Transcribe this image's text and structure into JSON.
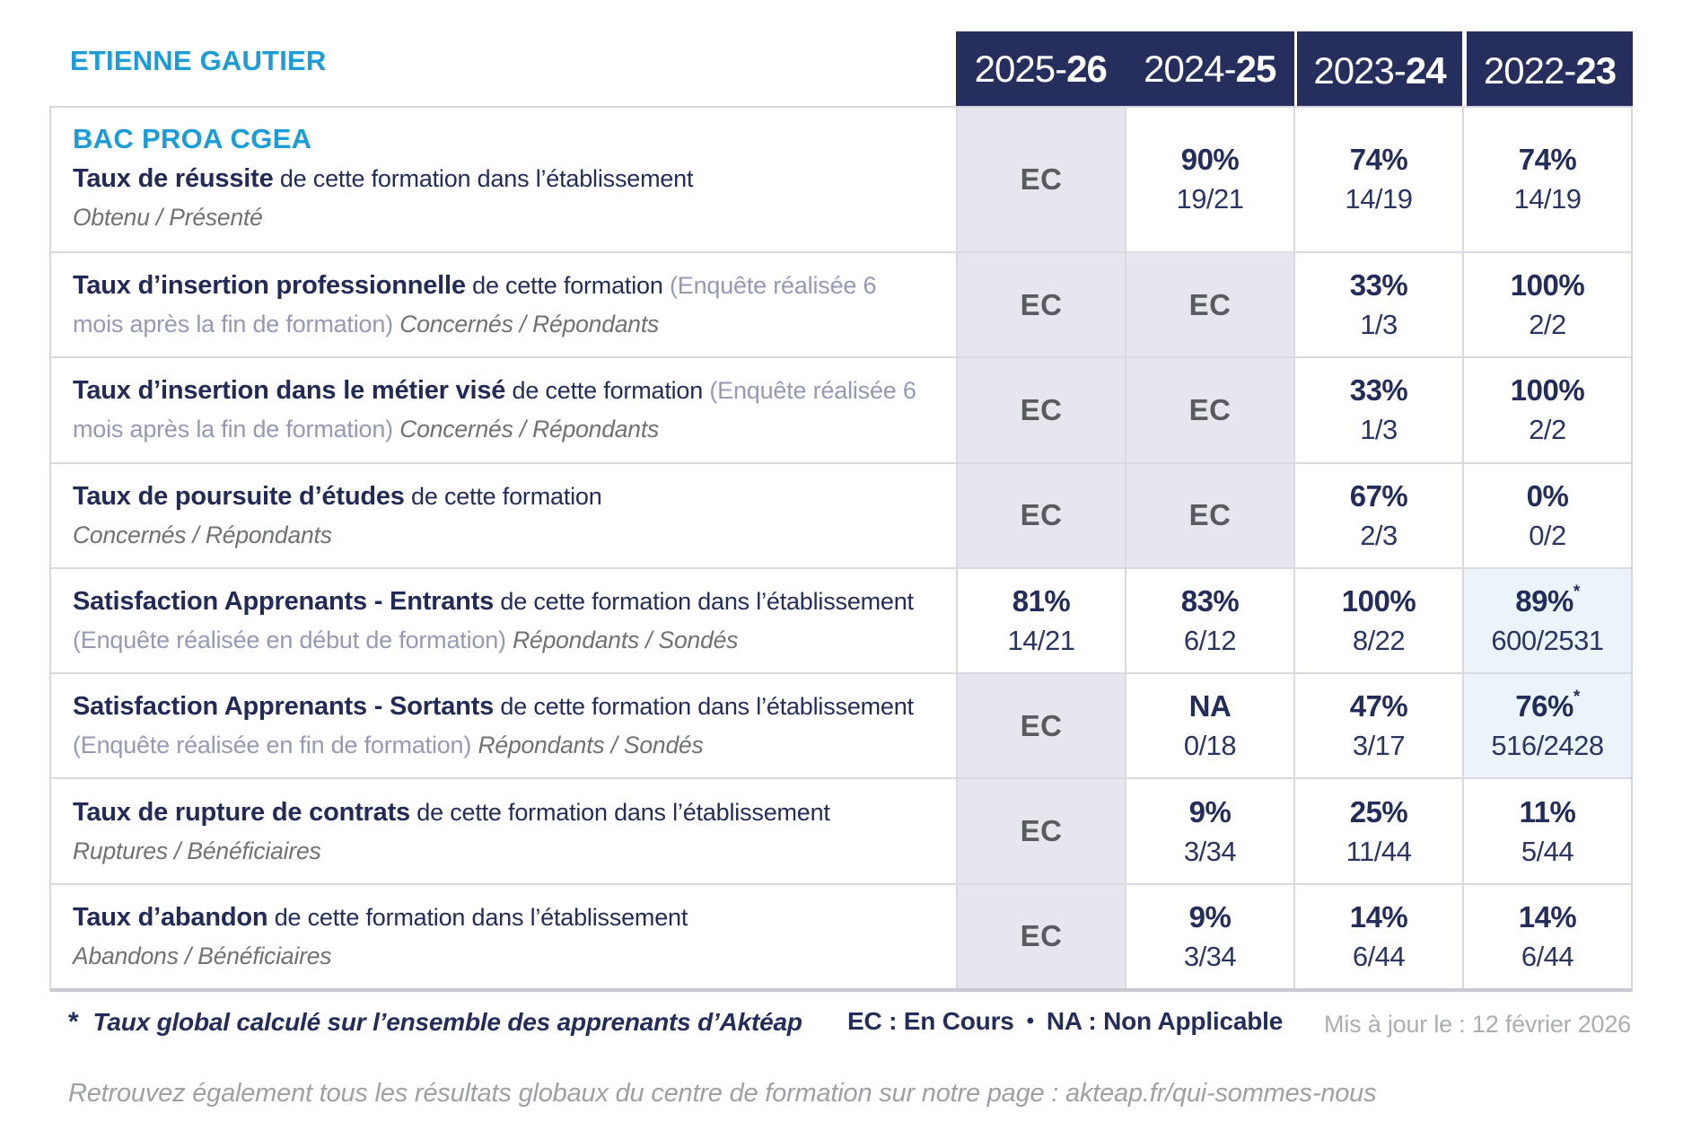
{
  "colors": {
    "accent_blue": "#1B9CD9",
    "navy": "#252E5C",
    "header_bg": "#252E5C",
    "grey_cell_bg": "#E7E6EE",
    "blue_cell_bg": "#EBF4FA",
    "ec_text_grey": "#5A5B5E",
    "border_grey": "#DAD9E2"
  },
  "header": {
    "student_name": "ETIENNE GAUTIER",
    "years": [
      {
        "prefix": "2025-",
        "suffix": "26"
      },
      {
        "prefix": "2024-",
        "suffix": "25"
      },
      {
        "prefix": "2023-",
        "suffix": "24"
      },
      {
        "prefix": "2022-",
        "suffix": "23"
      }
    ]
  },
  "program": {
    "title": "BAC PROA CGEA"
  },
  "rows": [
    {
      "title": "Taux de réussite",
      "desc": "de cette formation dans l’établissement",
      "note": "",
      "subtitle": "Obtenu / Présenté",
      "subtitle_block": true,
      "values": [
        {
          "type": "ec",
          "main": "EC",
          "star": "",
          "detail": ""
        },
        {
          "type": "value",
          "main": "90%",
          "star": "",
          "detail": "19/21"
        },
        {
          "type": "value",
          "main": "74%",
          "star": "",
          "detail": "14/19"
        },
        {
          "type": "value",
          "main": "74%",
          "star": "",
          "detail": "14/19"
        }
      ]
    },
    {
      "title": "Taux d’insertion professionnelle",
      "desc": "de cette formation",
      "note": "(Enquête réalisée 6 mois après la fin de formation)",
      "subtitle": "Concernés / Répondants",
      "subtitle_block": false,
      "values": [
        {
          "type": "ec",
          "main": "EC",
          "star": "",
          "detail": ""
        },
        {
          "type": "ec",
          "main": "EC",
          "star": "",
          "detail": ""
        },
        {
          "type": "value",
          "main": "33%",
          "star": "",
          "detail": "1/3"
        },
        {
          "type": "value",
          "main": "100%",
          "star": "",
          "detail": "2/2"
        }
      ]
    },
    {
      "title": "Taux d’insertion dans le métier visé",
      "desc": "de cette formation",
      "note": "(Enquête réalisée 6 mois après la fin de formation)",
      "subtitle": "Concernés / Répondants",
      "subtitle_block": false,
      "values": [
        {
          "type": "ec",
          "main": "EC",
          "star": "",
          "detail": ""
        },
        {
          "type": "ec",
          "main": "EC",
          "star": "",
          "detail": ""
        },
        {
          "type": "value",
          "main": "33%",
          "star": "",
          "detail": "1/3"
        },
        {
          "type": "value",
          "main": "100%",
          "star": "",
          "detail": "2/2"
        }
      ]
    },
    {
      "title": "Taux de poursuite d’études",
      "desc": "de cette formation",
      "note": "",
      "subtitle": "Concernés / Répondants",
      "subtitle_block": true,
      "values": [
        {
          "type": "ec",
          "main": "EC",
          "star": "",
          "detail": ""
        },
        {
          "type": "ec",
          "main": "EC",
          "star": "",
          "detail": ""
        },
        {
          "type": "value",
          "main": "67%",
          "star": "",
          "detail": "2/3"
        },
        {
          "type": "value",
          "main": "0%",
          "star": "",
          "detail": "0/2"
        }
      ]
    },
    {
      "title": "Satisfaction Apprenants - Entrants",
      "desc": "de cette formation dans l’établissement",
      "note": "(Enquête réalisée en début de formation)",
      "subtitle": "Répondants / Sondés",
      "subtitle_block": false,
      "values": [
        {
          "type": "value",
          "main": "81%",
          "star": "",
          "detail": "14/21"
        },
        {
          "type": "value",
          "main": "83%",
          "star": "",
          "detail": "6/12"
        },
        {
          "type": "value",
          "main": "100%",
          "star": "",
          "detail": "8/22"
        },
        {
          "type": "value-blue",
          "main": "89%",
          "star": "*",
          "detail": "600/2531"
        }
      ]
    },
    {
      "title": "Satisfaction Apprenants - Sortants",
      "desc": "de cette formation dans l’établissement",
      "note": "(Enquête réalisée en fin de formation)",
      "subtitle": "Répondants / Sondés",
      "subtitle_block": false,
      "values": [
        {
          "type": "ec",
          "main": "EC",
          "star": "",
          "detail": ""
        },
        {
          "type": "value",
          "main": "NA",
          "star": "",
          "detail": "0/18"
        },
        {
          "type": "value",
          "main": "47%",
          "star": "",
          "detail": "3/17"
        },
        {
          "type": "value-blue",
          "main": "76%",
          "star": "*",
          "detail": "516/2428"
        }
      ]
    },
    {
      "title": "Taux de rupture de contrats",
      "desc": "de cette formation dans l’établissement",
      "note": "",
      "subtitle": "Ruptures / Bénéficiaires",
      "subtitle_block": true,
      "values": [
        {
          "type": "ec",
          "main": "EC",
          "star": "",
          "detail": ""
        },
        {
          "type": "value",
          "main": "9%",
          "star": "",
          "detail": "3/34"
        },
        {
          "type": "value",
          "main": "25%",
          "star": "",
          "detail": "11/44"
        },
        {
          "type": "value",
          "main": "11%",
          "star": "",
          "detail": "5/44"
        }
      ]
    },
    {
      "title": "Taux d’abandon",
      "desc": "de cette formation dans l’établissement",
      "note": "",
      "subtitle": "Abandons / Bénéficiaires",
      "subtitle_block": true,
      "values": [
        {
          "type": "ec",
          "main": "EC",
          "star": "",
          "detail": ""
        },
        {
          "type": "value",
          "main": "9%",
          "star": "",
          "detail": "3/34"
        },
        {
          "type": "value",
          "main": "14%",
          "star": "",
          "detail": "6/44"
        },
        {
          "type": "value",
          "main": "14%",
          "star": "",
          "detail": "6/44"
        }
      ]
    }
  ],
  "footer": {
    "footnote_marker": "*",
    "footnote_text": "Taux global calculé sur l’ensemble des apprenants d’Aktéap",
    "legend_ec": "EC : En Cours",
    "legend_bullet": "•",
    "legend_na": "NA : Non Applicable",
    "updated": "Mis à jour le : 12 février 2026",
    "bottom_note_text": "Retrouvez également tous les résultats globaux du centre de formation sur notre page : ",
    "bottom_note_link": "akteap.fr/qui-sommes-nous"
  }
}
